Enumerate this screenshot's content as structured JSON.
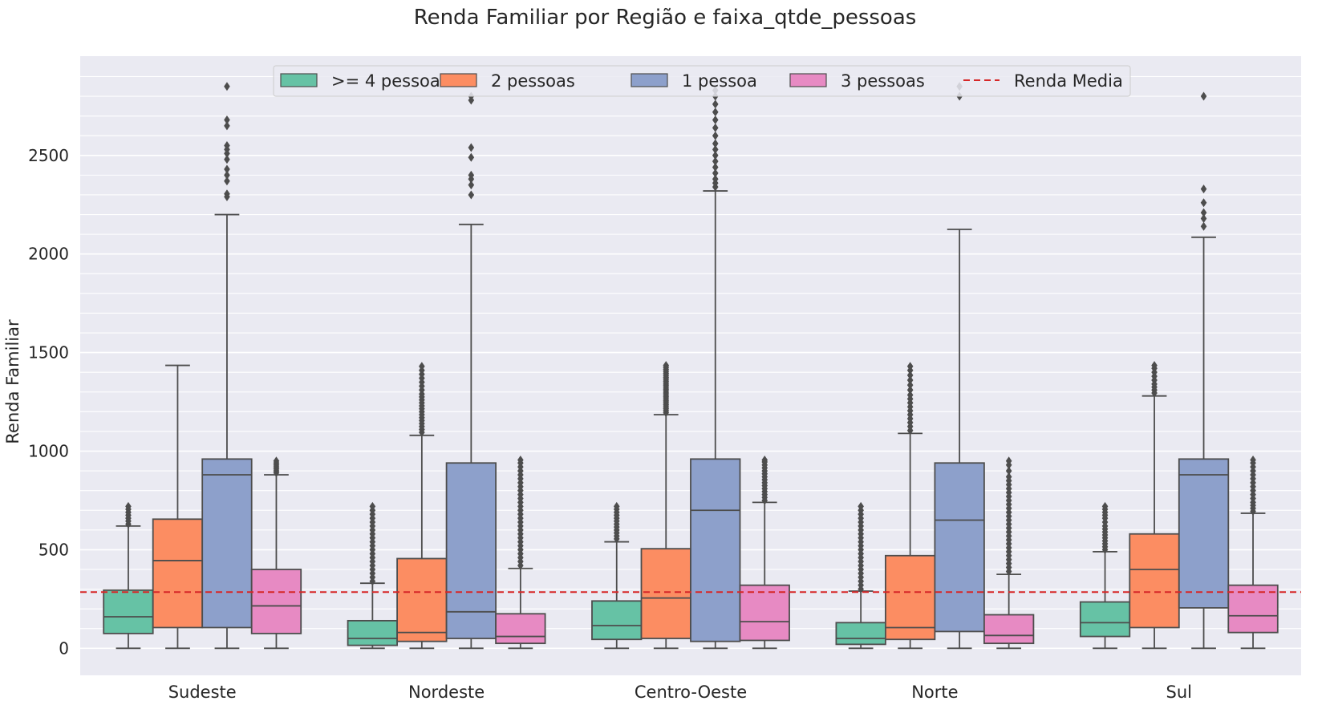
{
  "chart_data": {
    "type": "box",
    "title": "Renda Familiar por Região e faixa_qtde_pessoas",
    "xlabel": "",
    "ylabel": "Renda Familiar",
    "ylim": [
      -140,
      3000
    ],
    "yticks": [
      0,
      500,
      1000,
      1500,
      2000,
      2500
    ],
    "minor_grid_step": 100,
    "grid": true,
    "legend_position": "top-center",
    "categories": [
      "Sudeste",
      "Nordeste",
      "Centro-Oeste",
      "Norte",
      "Sul"
    ],
    "mean_line": {
      "label": "Renda Media",
      "value": 285,
      "color": "#d62728"
    },
    "series": [
      {
        "name": ">= 4 pessoas",
        "color": "#66c2a5",
        "boxes": [
          {
            "min": 0,
            "q1": 75,
            "median": 160,
            "q3": 295,
            "max": 620,
            "outliers": [
              630,
              645,
              660,
              675,
              690,
              705,
              720
            ]
          },
          {
            "min": 0,
            "q1": 15,
            "median": 50,
            "q3": 140,
            "max": 330,
            "outliers": [
              340,
              360,
              380,
              400,
              420,
              440,
              460,
              480,
              500,
              520,
              540,
              560,
              580,
              600,
              620,
              640,
              660,
              680,
              700,
              720
            ]
          },
          {
            "min": 0,
            "q1": 45,
            "median": 115,
            "q3": 240,
            "max": 540,
            "outliers": [
              555,
              570,
              585,
              600,
              615,
              630,
              645,
              660,
              675,
              690,
              705,
              720
            ]
          },
          {
            "min": 0,
            "q1": 20,
            "median": 50,
            "q3": 130,
            "max": 290,
            "outliers": [
              300,
              320,
              340,
              360,
              380,
              400,
              420,
              440,
              460,
              480,
              500,
              520,
              540,
              560,
              580,
              600,
              620,
              640,
              660,
              680,
              700,
              720
            ]
          },
          {
            "min": 0,
            "q1": 60,
            "median": 130,
            "q3": 235,
            "max": 490,
            "outliers": [
              500,
              515,
              530,
              545,
              560,
              575,
              590,
              605,
              620,
              640,
              660,
              675,
              690,
              705,
              720
            ]
          }
        ]
      },
      {
        "name": "2 pessoas",
        "color": "#fc8d62",
        "boxes": [
          {
            "min": 0,
            "q1": 105,
            "median": 445,
            "q3": 655,
            "max": 1435,
            "outliers": []
          },
          {
            "min": 0,
            "q1": 35,
            "median": 80,
            "q3": 455,
            "max": 1080,
            "outliers": [
              1095,
              1110,
              1125,
              1140,
              1155,
              1170,
              1185,
              1200,
              1215,
              1230,
              1245,
              1260,
              1275,
              1290,
              1310,
              1330,
              1350,
              1370,
              1390,
              1410,
              1430
            ]
          },
          {
            "min": 0,
            "q1": 50,
            "median": 255,
            "q3": 505,
            "max": 1185,
            "outliers": [
              1195,
              1205,
              1215,
              1225,
              1235,
              1245,
              1255,
              1265,
              1275,
              1285,
              1295,
              1305,
              1315,
              1325,
              1335,
              1345,
              1355,
              1365,
              1375,
              1385,
              1395,
              1405,
              1415,
              1425,
              1435
            ]
          },
          {
            "min": 0,
            "q1": 45,
            "median": 105,
            "q3": 470,
            "max": 1090,
            "outliers": [
              1105,
              1125,
              1145,
              1165,
              1185,
              1205,
              1225,
              1245,
              1265,
              1285,
              1310,
              1335,
              1360,
              1385,
              1410,
              1430
            ]
          },
          {
            "min": 0,
            "q1": 105,
            "median": 400,
            "q3": 580,
            "max": 1280,
            "outliers": [
              1295,
              1310,
              1325,
              1340,
              1360,
              1380,
              1400,
              1420,
              1435
            ]
          }
        ]
      },
      {
        "name": "1 pessoa",
        "color": "#8da0cb",
        "boxes": [
          {
            "min": 0,
            "q1": 105,
            "median": 880,
            "q3": 960,
            "max": 2200,
            "outliers": [
              2290,
              2305,
              2370,
              2400,
              2430,
              2480,
              2510,
              2530,
              2550,
              2650,
              2680,
              2850
            ]
          },
          {
            "min": 0,
            "q1": 50,
            "median": 185,
            "q3": 940,
            "max": 2150,
            "outliers": [
              2300,
              2350,
              2380,
              2400,
              2490,
              2540,
              2780,
              2800
            ]
          },
          {
            "min": 0,
            "q1": 35,
            "median": 700,
            "q3": 960,
            "max": 2320,
            "outliers": [
              2340,
              2360,
              2380,
              2410,
              2440,
              2470,
              2500,
              2530,
              2560,
              2600,
              2640,
              2680,
              2720,
              2760,
              2800,
              2830
            ]
          },
          {
            "min": 0,
            "q1": 85,
            "median": 650,
            "q3": 940,
            "max": 2125,
            "outliers": [
              2800,
              2850
            ]
          },
          {
            "min": 0,
            "q1": 205,
            "median": 880,
            "q3": 960,
            "max": 2085,
            "outliers": [
              2140,
              2180,
              2210,
              2260,
              2330,
              2800
            ]
          }
        ]
      },
      {
        "name": "3 pessoas",
        "color": "#e78ac3",
        "boxes": [
          {
            "min": 0,
            "q1": 75,
            "median": 215,
            "q3": 400,
            "max": 880,
            "outliers": [
              890,
              900,
              910,
              920,
              930,
              940,
              950
            ]
          },
          {
            "min": 0,
            "q1": 25,
            "median": 60,
            "q3": 175,
            "max": 405,
            "outliers": [
              420,
              440,
              460,
              480,
              500,
              520,
              540,
              560,
              580,
              600,
              620,
              640,
              660,
              680,
              700,
              720,
              740,
              760,
              780,
              800,
              820,
              840,
              860,
              880,
              900,
              920,
              940,
              955
            ]
          },
          {
            "min": 0,
            "q1": 40,
            "median": 135,
            "q3": 320,
            "max": 740,
            "outliers": [
              750,
              765,
              780,
              795,
              810,
              825,
              840,
              855,
              870,
              885,
              900,
              915,
              930,
              945,
              955
            ]
          },
          {
            "min": 0,
            "q1": 25,
            "median": 65,
            "q3": 170,
            "max": 375,
            "outliers": [
              390,
              410,
              430,
              450,
              470,
              490,
              510,
              530,
              550,
              570,
              590,
              610,
              630,
              650,
              670,
              690,
              710,
              730,
              750,
              770,
              790,
              810,
              830,
              850,
              870,
              900,
              930,
              950
            ]
          },
          {
            "min": 0,
            "q1": 80,
            "median": 165,
            "q3": 320,
            "max": 685,
            "outliers": [
              695,
              710,
              725,
              740,
              760,
              780,
              800,
              820,
              840,
              860,
              880,
              900,
              920,
              940,
              955
            ]
          }
        ]
      }
    ]
  }
}
